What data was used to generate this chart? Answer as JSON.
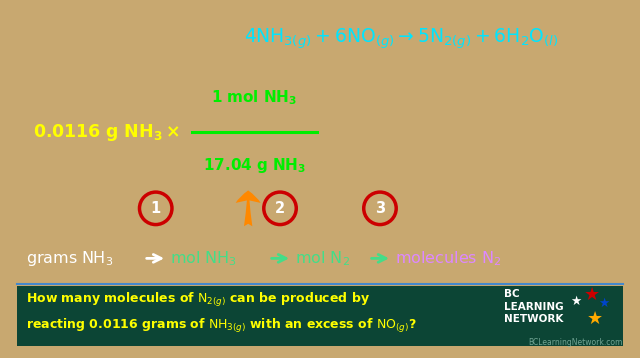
{
  "bg_color": "#0d4d3a",
  "border_color": "#c8a870",
  "eq_color": "#00e5ff",
  "fraction_color": "#00ee00",
  "arrow_color": "#ff8800",
  "arrow_outline": "#cc0000",
  "yellow_color": "#ffff00",
  "white_color": "#ffffff",
  "cyan_color": "#44dd88",
  "magenta_color": "#dd88ff",
  "red_circle_color": "#cc0000",
  "bottom_line_color": "#4488cc",
  "watermark": "BCLearningNetwork.com",
  "figw": 6.4,
  "figh": 3.58,
  "dpi": 100
}
